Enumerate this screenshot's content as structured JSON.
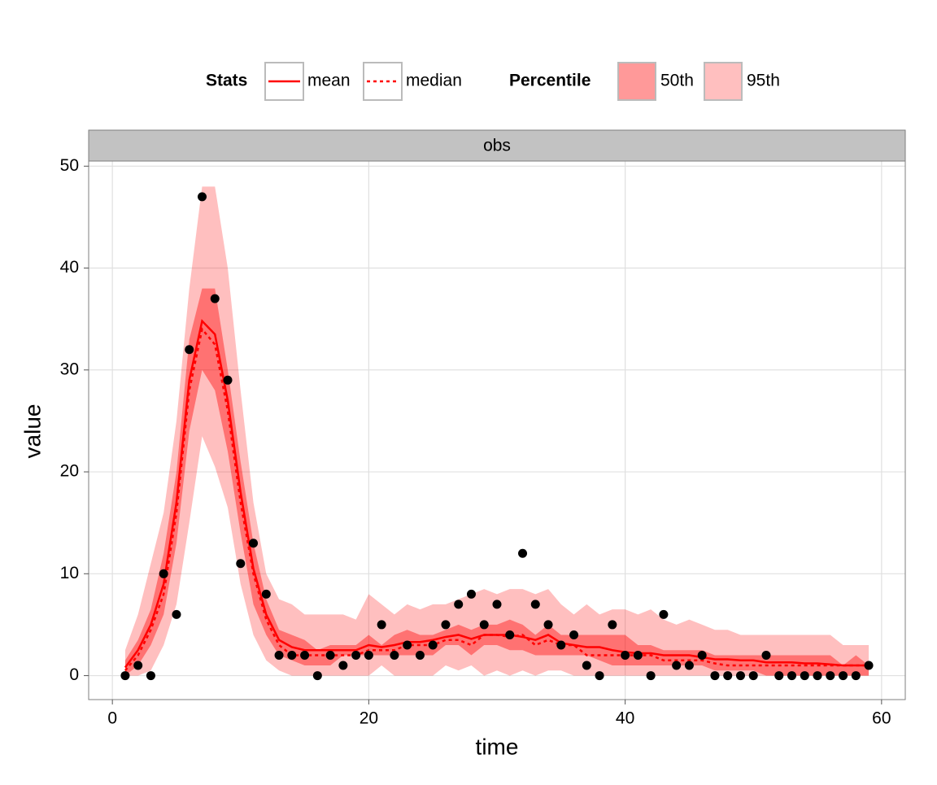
{
  "chart_data": {
    "type": "line",
    "strip": "obs",
    "x_label": "time",
    "y_label": "value",
    "xlim": [
      -1.85,
      61.85
    ],
    "ylim": [
      -2.35,
      50.5
    ],
    "xticks": [
      0,
      20,
      40,
      60
    ],
    "yticks": [
      0,
      10,
      20,
      30,
      40,
      50
    ],
    "grid": true,
    "legend_position": "top",
    "legend_titles": {
      "stats": "Stats",
      "percentile": "Percentile"
    },
    "x": [
      1,
      2,
      3,
      4,
      5,
      6,
      7,
      8,
      9,
      10,
      11,
      12,
      13,
      14,
      15,
      16,
      17,
      18,
      19,
      20,
      21,
      22,
      23,
      24,
      25,
      26,
      27,
      28,
      29,
      30,
      31,
      32,
      33,
      34,
      35,
      36,
      37,
      38,
      39,
      40,
      41,
      42,
      43,
      44,
      45,
      46,
      47,
      48,
      49,
      50,
      51,
      52,
      53,
      54,
      55,
      56,
      57,
      58,
      59
    ],
    "bands": [
      {
        "name": "95th",
        "color": "#ff0000",
        "alpha": 0.25,
        "low": [
          0,
          0,
          0.5,
          3,
          7,
          15,
          23.5,
          20.5,
          16.5,
          9,
          4,
          1.5,
          0.5,
          0,
          0,
          0,
          0,
          0,
          0,
          0,
          1,
          0,
          0,
          0,
          0,
          1,
          0.5,
          1,
          0,
          0.5,
          0,
          0.5,
          0,
          0.5,
          0.5,
          0,
          0,
          0,
          0,
          0,
          0,
          0,
          0,
          0,
          0,
          0,
          0,
          0,
          0,
          0,
          0,
          0,
          0,
          0,
          0,
          0,
          0,
          0,
          0
        ],
        "high": [
          2.5,
          6,
          11,
          16,
          25,
          38,
          48,
          48,
          40,
          28,
          17,
          10,
          7.5,
          7,
          6,
          6,
          6,
          6,
          5.5,
          8,
          7,
          6,
          7,
          6.5,
          7,
          7,
          7.5,
          8,
          8.5,
          8,
          8.5,
          8.5,
          8,
          8.5,
          7,
          6,
          7,
          6,
          6.5,
          6.5,
          6,
          6.5,
          5.5,
          5,
          5.5,
          5,
          4.5,
          4.5,
          4,
          4,
          4,
          4,
          4,
          4,
          4,
          4,
          3,
          3,
          3
        ]
      },
      {
        "name": "50th",
        "color": "#ff0000",
        "alpha": 0.4,
        "low": [
          0,
          1,
          3,
          6,
          13,
          24,
          30,
          28,
          22,
          14,
          7,
          4,
          2,
          1.5,
          1,
          1,
          1,
          2,
          2,
          2,
          2,
          2,
          2,
          2,
          2,
          3,
          3,
          2,
          3,
          3,
          2.5,
          2.5,
          2,
          2,
          2,
          2,
          2,
          1.5,
          1,
          1,
          1,
          1,
          1,
          1,
          1,
          1,
          0.5,
          0.5,
          0.5,
          0.5,
          0,
          0,
          0,
          0,
          0,
          0,
          0,
          0,
          0
        ],
        "high": [
          1.5,
          3.5,
          6.5,
          12,
          20,
          33,
          38,
          38,
          30,
          21,
          13,
          7.5,
          4.5,
          4,
          3.5,
          2.5,
          3,
          3,
          3,
          4,
          3,
          4,
          4.5,
          4,
          4,
          4.5,
          5,
          4.5,
          5,
          5,
          5.5,
          5,
          4,
          5,
          4,
          4,
          4,
          4,
          4,
          4,
          3,
          3,
          2.5,
          2.5,
          2.5,
          2.5,
          2,
          2,
          2,
          2,
          2,
          2,
          2,
          2,
          2,
          2,
          1,
          2,
          1
        ]
      }
    ],
    "series": [
      {
        "name": "mean",
        "color": "#ff0000",
        "dash": "solid",
        "values": [
          0.8,
          2.5,
          5,
          9,
          17,
          29,
          34.8,
          33.5,
          27,
          18,
          10.5,
          6,
          3.5,
          2.8,
          2.5,
          2.5,
          2.5,
          2.5,
          2.5,
          3,
          2.8,
          3,
          3.3,
          3.3,
          3.5,
          3.8,
          4,
          3.6,
          4,
          4,
          4,
          3.8,
          3.5,
          4,
          3.2,
          3,
          2.8,
          2.8,
          2.5,
          2.3,
          2.2,
          2.2,
          2,
          2,
          2,
          1.8,
          1.6,
          1.6,
          1.5,
          1.5,
          1.3,
          1.3,
          1.3,
          1.2,
          1.2,
          1.1,
          1,
          1,
          1
        ]
      },
      {
        "name": "median",
        "color": "#ff0000",
        "dash": "dotted",
        "values": [
          0.5,
          2,
          4.5,
          8,
          16,
          28,
          34,
          32.5,
          26,
          17,
          10,
          5.5,
          3,
          2,
          2,
          2,
          2,
          2,
          2,
          2.5,
          2.5,
          2.5,
          3,
          3,
          3,
          3.5,
          3.5,
          3,
          4,
          4,
          3.8,
          4,
          3,
          3.5,
          3,
          3,
          2,
          2,
          2,
          2,
          2,
          2,
          1.5,
          1.5,
          1.5,
          1.5,
          1.2,
          1,
          1,
          1,
          1,
          1,
          1,
          1,
          1,
          1,
          1,
          1,
          1
        ]
      },
      {
        "name": "obs",
        "color": "#000000",
        "dash": "points",
        "values": [
          0,
          1,
          0,
          10,
          6,
          32,
          47,
          37,
          29,
          11,
          13,
          8,
          2,
          2,
          2,
          0,
          2,
          1,
          2,
          2,
          5,
          2,
          3,
          2,
          3,
          5,
          7,
          8,
          5,
          7,
          4,
          12,
          7,
          5,
          3,
          4,
          1,
          0,
          5,
          2,
          2,
          0,
          6,
          1,
          1,
          2,
          0,
          0,
          0,
          0,
          2,
          0,
          0,
          0,
          0,
          0,
          0,
          0,
          1
        ]
      }
    ]
  }
}
